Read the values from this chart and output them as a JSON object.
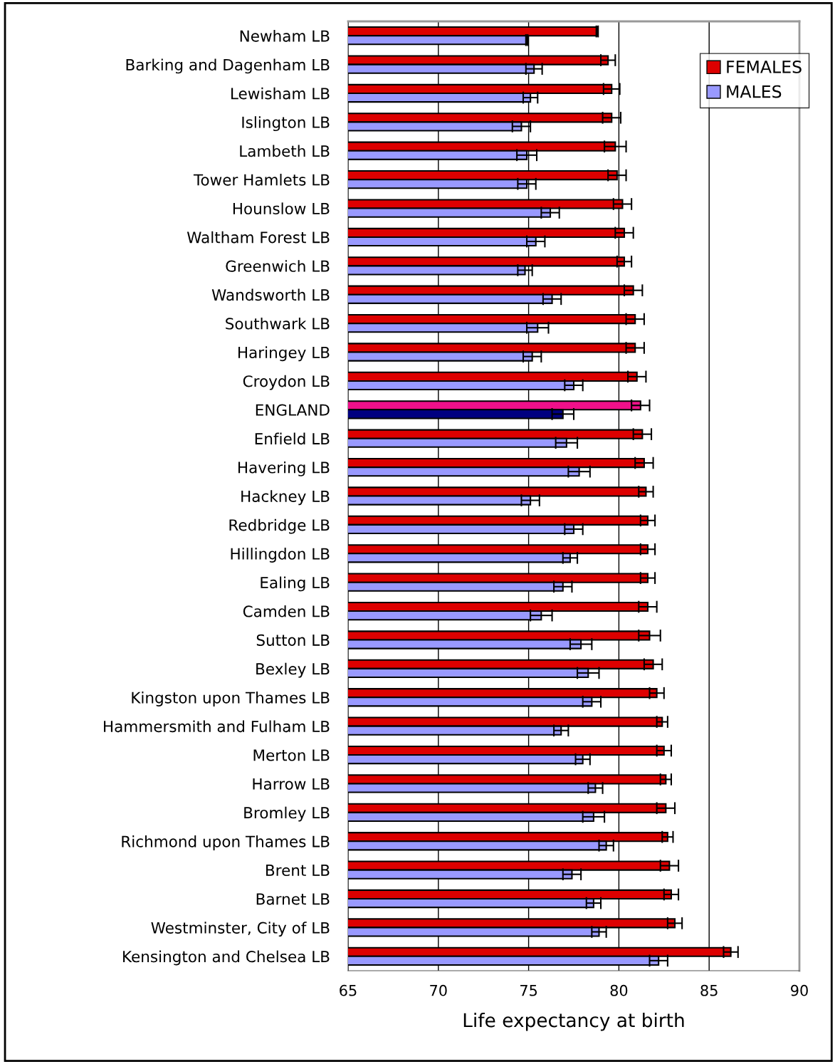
{
  "chart_data": {
    "type": "bar",
    "orientation": "horizontal",
    "xlabel": "Life expectancy at birth",
    "categories": [
      "Newham LB",
      "Barking and Dagenham LB",
      "Lewisham LB",
      "Islington LB",
      "Lambeth LB",
      "Tower Hamlets LB",
      "Hounslow LB",
      "Waltham Forest LB",
      "Greenwich LB",
      "Wandsworth LB",
      "Southwark LB",
      "Haringey LB",
      "Croydon LB",
      "ENGLAND",
      "Enfield LB",
      "Havering LB",
      "Hackney LB",
      "Redbridge LB",
      "Hillingdon LB",
      "Ealing LB",
      "Camden LB",
      "Sutton LB",
      "Bexley LB",
      "Kingston upon Thames LB",
      "Hammersmith and Fulham LB",
      "Merton LB",
      "Harrow LB",
      "Bromley LB",
      "Richmond upon Thames LB",
      "Brent LB",
      "Barnet LB",
      "Westminster, City of LB",
      "Kensington and Chelsea LB"
    ],
    "series": [
      {
        "name": "FEMALES",
        "color": "#dd0000",
        "colors": [
          "#dd0000",
          "#dd0000",
          "#dd0000",
          "#dd0000",
          "#dd0000",
          "#dd0000",
          "#dd0000",
          "#dd0000",
          "#dd0000",
          "#dd0000",
          "#dd0000",
          "#dd0000",
          "#dd0000",
          "#f0108a",
          "#dd0000",
          "#dd0000",
          "#dd0000",
          "#dd0000",
          "#dd0000",
          "#dd0000",
          "#dd0000",
          "#dd0000",
          "#dd0000",
          "#dd0000",
          "#dd0000",
          "#dd0000",
          "#dd0000",
          "#dd0000",
          "#dd0000",
          "#dd0000",
          "#dd0000",
          "#dd0000",
          "#dd0000"
        ],
        "values": [
          78.8,
          79.4,
          79.6,
          79.6,
          79.8,
          79.9,
          80.2,
          80.3,
          80.3,
          80.8,
          80.9,
          80.9,
          81.0,
          81.2,
          81.3,
          81.4,
          81.5,
          81.6,
          81.6,
          81.6,
          81.6,
          81.7,
          81.9,
          82.1,
          82.4,
          82.5,
          82.6,
          82.6,
          82.7,
          82.8,
          82.9,
          83.1,
          86.2
        ],
        "errors": [
          0.05,
          0.4,
          0.45,
          0.5,
          0.6,
          0.5,
          0.5,
          0.5,
          0.4,
          0.5,
          0.5,
          0.5,
          0.5,
          0.5,
          0.5,
          0.5,
          0.4,
          0.4,
          0.4,
          0.4,
          0.5,
          0.6,
          0.5,
          0.4,
          0.3,
          0.4,
          0.3,
          0.5,
          0.3,
          0.5,
          0.4,
          0.4,
          0.4
        ]
      },
      {
        "name": "MALES",
        "color": "#9999ff",
        "colors": [
          "#9999ff",
          "#9999ff",
          "#9999ff",
          "#9999ff",
          "#9999ff",
          "#9999ff",
          "#9999ff",
          "#9999ff",
          "#9999ff",
          "#9999ff",
          "#9999ff",
          "#9999ff",
          "#9999ff",
          "#000080",
          "#9999ff",
          "#9999ff",
          "#9999ff",
          "#9999ff",
          "#9999ff",
          "#9999ff",
          "#9999ff",
          "#9999ff",
          "#9999ff",
          "#9999ff",
          "#9999ff",
          "#9999ff",
          "#9999ff",
          "#9999ff",
          "#9999ff",
          "#9999ff",
          "#9999ff",
          "#9999ff",
          "#9999ff"
        ],
        "values": [
          74.9,
          75.3,
          75.1,
          74.6,
          74.9,
          74.9,
          76.2,
          75.4,
          74.8,
          76.3,
          75.5,
          75.2,
          77.5,
          76.9,
          77.1,
          77.8,
          75.1,
          77.5,
          77.3,
          76.9,
          75.7,
          77.9,
          78.3,
          78.5,
          76.8,
          78.0,
          78.7,
          78.6,
          79.3,
          77.4,
          78.6,
          78.9,
          82.2
        ],
        "errors": [
          0.05,
          0.45,
          0.4,
          0.5,
          0.55,
          0.5,
          0.5,
          0.5,
          0.4,
          0.5,
          0.6,
          0.5,
          0.5,
          0.6,
          0.6,
          0.6,
          0.5,
          0.5,
          0.4,
          0.5,
          0.6,
          0.6,
          0.6,
          0.5,
          0.4,
          0.4,
          0.4,
          0.6,
          0.4,
          0.5,
          0.4,
          0.4,
          0.5
        ]
      }
    ],
    "xlim": [
      65,
      90
    ],
    "xticks": [
      65,
      70,
      75,
      80,
      85,
      90
    ],
    "grid": "x",
    "legend": "top right"
  }
}
